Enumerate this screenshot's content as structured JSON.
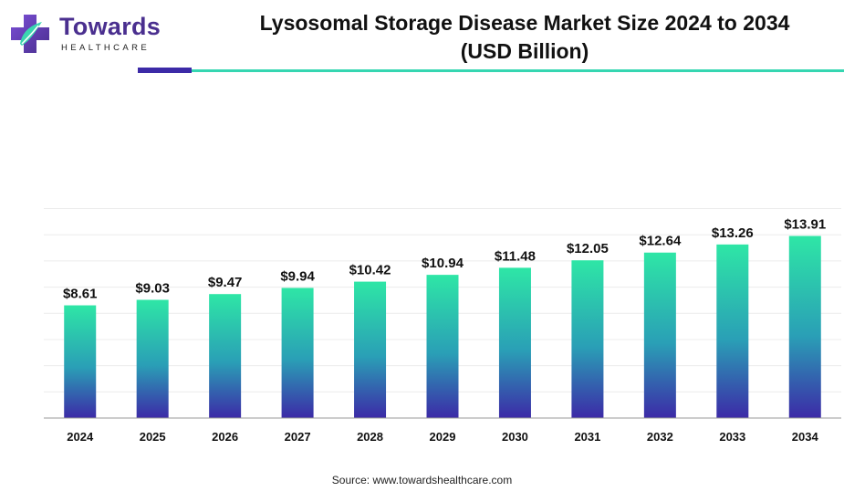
{
  "brand": {
    "name": "Towards",
    "tagline": "HEALTHCARE"
  },
  "header": {
    "title_line1": "Lysosomal Storage Disease Market Size 2024 to 2034",
    "title_line2": "(USD Billion)"
  },
  "colors": {
    "bar_top": "#2ee6a6",
    "bar_mid": "#2a9fb6",
    "bar_bottom": "#3c2aa7",
    "accent_purple": "#3c2aa7",
    "accent_teal": "#35d6b1"
  },
  "chart_data": {
    "type": "bar",
    "title": "Lysosomal Storage Disease Market Size 2024 to 2034 (USD Billion)",
    "xlabel": "",
    "ylabel": "",
    "categories": [
      "2024",
      "2025",
      "2026",
      "2027",
      "2028",
      "2029",
      "2030",
      "2031",
      "2032",
      "2033",
      "2034"
    ],
    "values": [
      8.61,
      9.03,
      9.47,
      9.94,
      10.42,
      10.94,
      11.48,
      12.05,
      12.64,
      13.26,
      13.91
    ],
    "data_labels": [
      "$8.61",
      "$9.03",
      "$9.47",
      "$9.94",
      "$10.42",
      "$10.94",
      "$11.48",
      "$12.05",
      "$12.64",
      "$13.26",
      "$13.91"
    ],
    "ylim": [
      0,
      16
    ],
    "grid": true,
    "legend": "none"
  },
  "source": "Source: www.towardshealthcare.com"
}
